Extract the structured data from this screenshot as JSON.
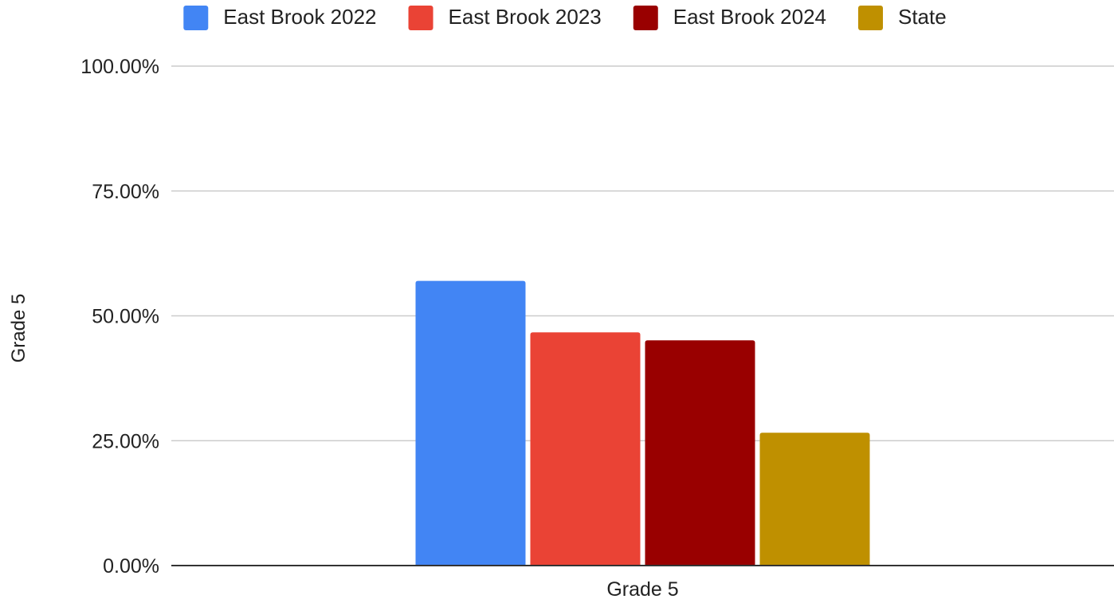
{
  "chart_data": {
    "type": "bar",
    "categories": [
      "Grade 5"
    ],
    "series": [
      {
        "name": "East Brook 2022",
        "color": "#4285f4",
        "values": [
          0.57
        ]
      },
      {
        "name": "East Brook 2023",
        "color": "#ea4335",
        "values": [
          0.467
        ]
      },
      {
        "name": "East Brook 2024",
        "color": "#990000",
        "values": [
          0.451
        ]
      },
      {
        "name": "State",
        "color": "#bf9000",
        "values": [
          0.266
        ]
      }
    ],
    "title": "",
    "xlabel": "",
    "ylabel": "Grade 5",
    "ylim": [
      0,
      1
    ],
    "yticks": [
      0,
      0.25,
      0.5,
      0.75,
      1
    ],
    "ytick_labels": [
      "0.00%",
      "25.00%",
      "50.00%",
      "75.00%",
      "100.00%"
    ],
    "grid": true,
    "legend_position": "top"
  }
}
